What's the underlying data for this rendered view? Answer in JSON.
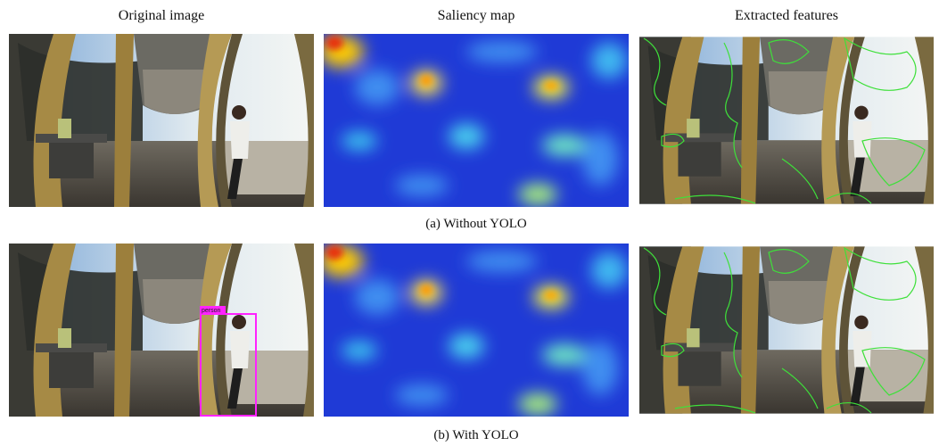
{
  "columns": [
    "Original image",
    "Saliency map",
    "Extracted features"
  ],
  "rows": [
    {
      "caption": "(a) Without YOLO"
    },
    {
      "caption": "(b) With YOLO",
      "detection_label": "person"
    }
  ]
}
